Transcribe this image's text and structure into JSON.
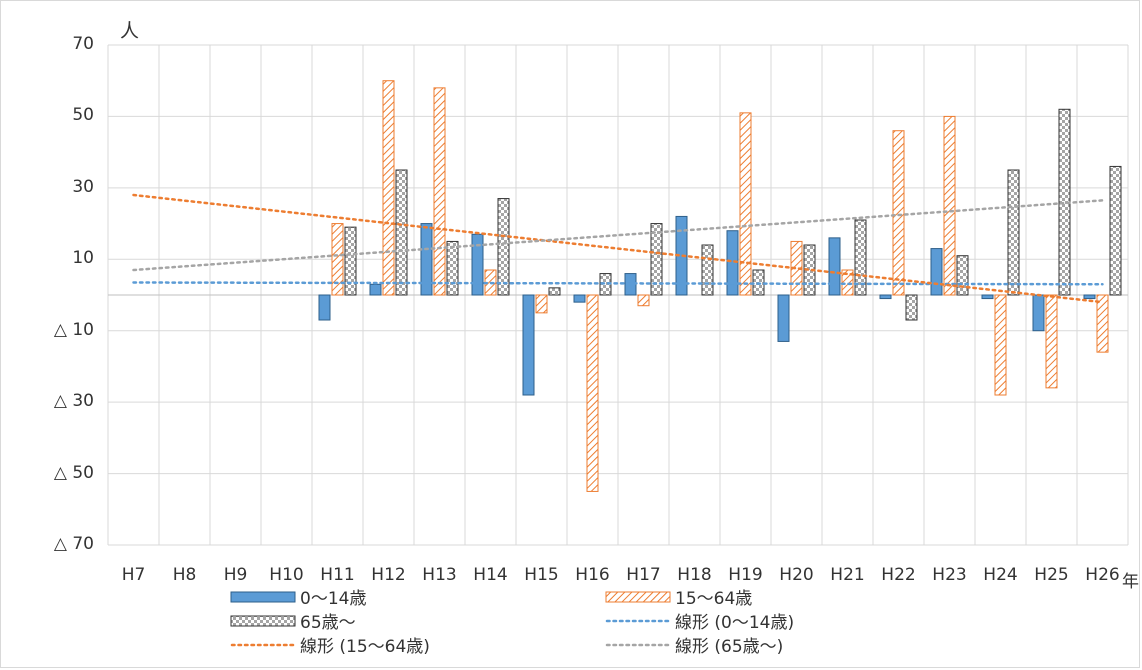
{
  "chart_data": {
    "type": "bar",
    "title": "",
    "ylabel": "人",
    "xlabel": "年",
    "categories": [
      "H7",
      "H8",
      "H9",
      "H10",
      "H11",
      "H12",
      "H13",
      "H14",
      "H15",
      "H16",
      "H17",
      "H18",
      "H19",
      "H20",
      "H21",
      "H22",
      "H23",
      "H24",
      "H25",
      "H26"
    ],
    "ylim": [
      -70,
      70
    ],
    "yticks": [
      70,
      50,
      30,
      10,
      -10,
      -30,
      -50,
      -70
    ],
    "ytick_labels": [
      "70",
      "50",
      "30",
      "10",
      "△ 10",
      "△ 30",
      "△ 50",
      "△ 70"
    ],
    "series": [
      {
        "name": "0～14歳",
        "style": "solid",
        "color": "#5b9bd5",
        "values": [
          null,
          null,
          null,
          null,
          -7,
          3,
          20,
          17,
          -28,
          -2,
          6,
          22,
          18,
          -13,
          16,
          -1,
          13,
          -1,
          -10,
          -1
        ]
      },
      {
        "name": "15～64歳",
        "style": "diagonal-hatch",
        "color": "#ed7d31",
        "values": [
          null,
          null,
          null,
          null,
          20,
          60,
          58,
          7,
          -5,
          -55,
          -3,
          null,
          51,
          15,
          7,
          46,
          50,
          -28,
          -26,
          -16
        ]
      },
      {
        "name": "65歳～",
        "style": "checker",
        "color": "#a5a5a5",
        "values": [
          null,
          null,
          null,
          null,
          19,
          35,
          15,
          27,
          2,
          6,
          20,
          14,
          7,
          14,
          21,
          -7,
          11,
          35,
          52,
          36
        ]
      }
    ],
    "trendlines": [
      {
        "name": "線形 (0～14歳)",
        "color": "#5b9bd5",
        "start": 3.5,
        "end": 3.0
      },
      {
        "name": "線形 (15～64歳)",
        "color": "#ed7d31",
        "start": 28,
        "end": -2
      },
      {
        "name": "線形 (65歳～)",
        "color": "#a5a5a5",
        "start": 7,
        "end": 26.5
      }
    ],
    "grid": true,
    "legend_position": "bottom"
  }
}
